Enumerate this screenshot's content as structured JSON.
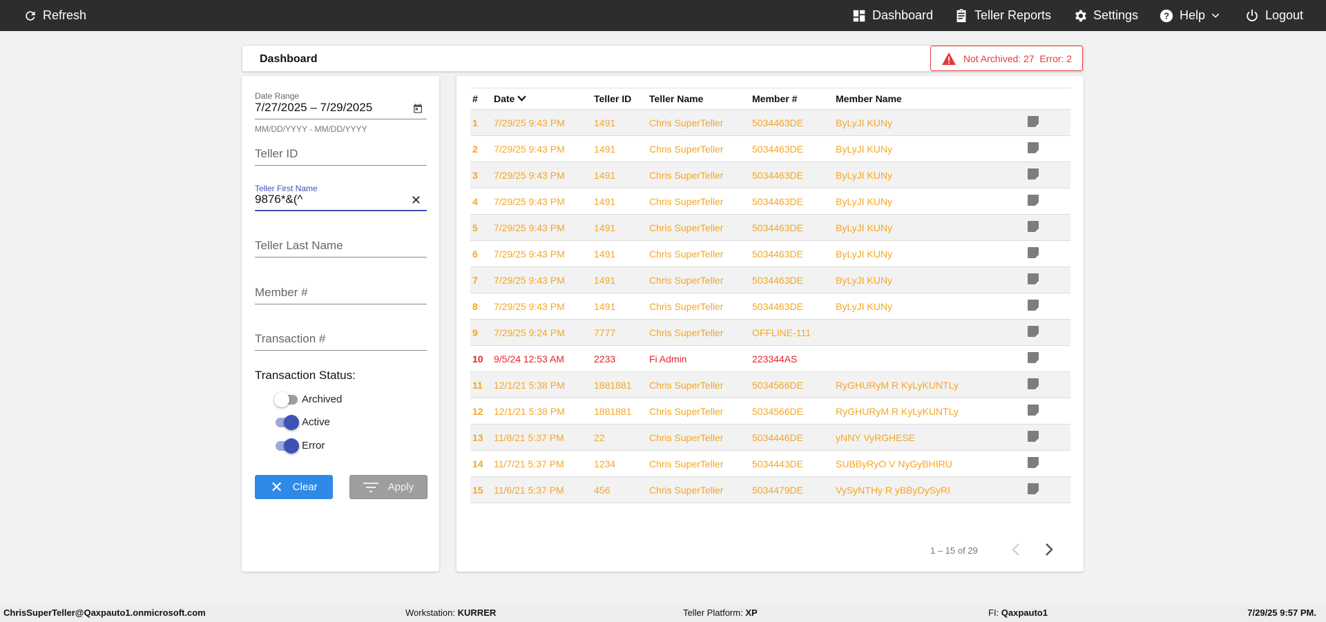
{
  "topbar": {
    "refresh": "Refresh",
    "dashboard": "Dashboard",
    "teller_reports": "Teller Reports",
    "settings": "Settings",
    "help": "Help",
    "logout": "Logout"
  },
  "header": {
    "title": "Dashboard",
    "alert": "Not Archived: 27  Error: 2"
  },
  "filters": {
    "date_range_label": "Date Range",
    "date_range_value": "7/27/2025 – 7/29/2025",
    "date_hint": "MM/DD/YYYY - MM/DD/YYYY",
    "teller_id_placeholder": "Teller ID",
    "first_name_label": "Teller First Name",
    "first_name_value": "9876*&(^",
    "last_name_placeholder": "Teller Last Name",
    "member_placeholder": "Member #",
    "transaction_placeholder": "Transaction #",
    "status_label": "Transaction Status:",
    "toggles": [
      {
        "label": "Archived",
        "on": false
      },
      {
        "label": "Active",
        "on": true
      },
      {
        "label": "Error",
        "on": true
      }
    ],
    "clear": "Clear",
    "apply": "Apply"
  },
  "table": {
    "columns": [
      "#",
      "Date",
      "Teller ID",
      "Teller Name",
      "Member #",
      "Member Name"
    ],
    "rows": [
      {
        "n": "1",
        "date": "7/29/25 9:43 PM",
        "tid": "1491",
        "tname": "Chris SuperTeller",
        "mem": "5034463DE",
        "mname": "ByLyJI KUNy",
        "status": "active"
      },
      {
        "n": "2",
        "date": "7/29/25 9:43 PM",
        "tid": "1491",
        "tname": "Chris SuperTeller",
        "mem": "5034463DE",
        "mname": "ByLyJI KUNy",
        "status": "active"
      },
      {
        "n": "3",
        "date": "7/29/25 9:43 PM",
        "tid": "1491",
        "tname": "Chris SuperTeller",
        "mem": "5034463DE",
        "mname": "ByLyJI KUNy",
        "status": "active"
      },
      {
        "n": "4",
        "date": "7/29/25 9:43 PM",
        "tid": "1491",
        "tname": "Chris SuperTeller",
        "mem": "5034463DE",
        "mname": "ByLyJI KUNy",
        "status": "active"
      },
      {
        "n": "5",
        "date": "7/29/25 9:43 PM",
        "tid": "1491",
        "tname": "Chris SuperTeller",
        "mem": "5034463DE",
        "mname": "ByLyJI KUNy",
        "status": "active"
      },
      {
        "n": "6",
        "date": "7/29/25 9:43 PM",
        "tid": "1491",
        "tname": "Chris SuperTeller",
        "mem": "5034463DE",
        "mname": "ByLyJI KUNy",
        "status": "active"
      },
      {
        "n": "7",
        "date": "7/29/25 9:43 PM",
        "tid": "1491",
        "tname": "Chris SuperTeller",
        "mem": "5034463DE",
        "mname": "ByLyJI KUNy",
        "status": "active"
      },
      {
        "n": "8",
        "date": "7/29/25 9:43 PM",
        "tid": "1491",
        "tname": "Chris SuperTeller",
        "mem": "5034463DE",
        "mname": "ByLyJI KUNy",
        "status": "active"
      },
      {
        "n": "9",
        "date": "7/29/25 9:24 PM",
        "tid": "7777",
        "tname": "Chris SuperTeller",
        "mem": "OFFLINE-111",
        "mname": "",
        "status": "active"
      },
      {
        "n": "10",
        "date": "9/5/24 12:53 AM",
        "tid": "2233",
        "tname": "Fi Admin",
        "mem": "223344AS",
        "mname": "",
        "status": "error"
      },
      {
        "n": "11",
        "date": "12/1/21 5:38 PM",
        "tid": "1881881",
        "tname": "Chris SuperTeller",
        "mem": "5034566DE",
        "mname": "RyGHURyM R KyLyKUNTLy",
        "status": "active"
      },
      {
        "n": "12",
        "date": "12/1/21 5:38 PM",
        "tid": "1881881",
        "tname": "Chris SuperTeller",
        "mem": "5034566DE",
        "mname": "RyGHURyM R KyLyKUNTLy",
        "status": "active"
      },
      {
        "n": "13",
        "date": "11/8/21 5:37 PM",
        "tid": "22",
        "tname": "Chris SuperTeller",
        "mem": "5034446DE",
        "mname": "yNNY VyRGHESE",
        "status": "active"
      },
      {
        "n": "14",
        "date": "11/7/21 5:37 PM",
        "tid": "1234",
        "tname": "Chris SuperTeller",
        "mem": "5034443DE",
        "mname": "SUBByRyO V NyGyBHIRU",
        "status": "active"
      },
      {
        "n": "15",
        "date": "11/6/21 5:37 PM",
        "tid": "456",
        "tname": "Chris SuperTeller",
        "mem": "5034479DE",
        "mname": "VySyNTHy R yBByDySyRI",
        "status": "active"
      }
    ],
    "pagination": "1 – 15 of 29"
  },
  "footer": {
    "user": "ChrisSuperTeller@Qaxpauto1.onmicrosoft.com",
    "workstation_label": "Workstation:",
    "workstation": "KURRER",
    "platform_label": "Teller Platform:",
    "platform": "XP",
    "fi_label": "FI:",
    "fi": "Qaxpauto1",
    "datetime": "7/29/25 9:57 PM."
  },
  "colors": {
    "active_row": "#f5a623",
    "error_row": "#e8202a",
    "accent": "#3f51b5",
    "clear_button": "#2e8ae6",
    "apply_button": "#9e9e9e",
    "alert": "#e53935"
  }
}
